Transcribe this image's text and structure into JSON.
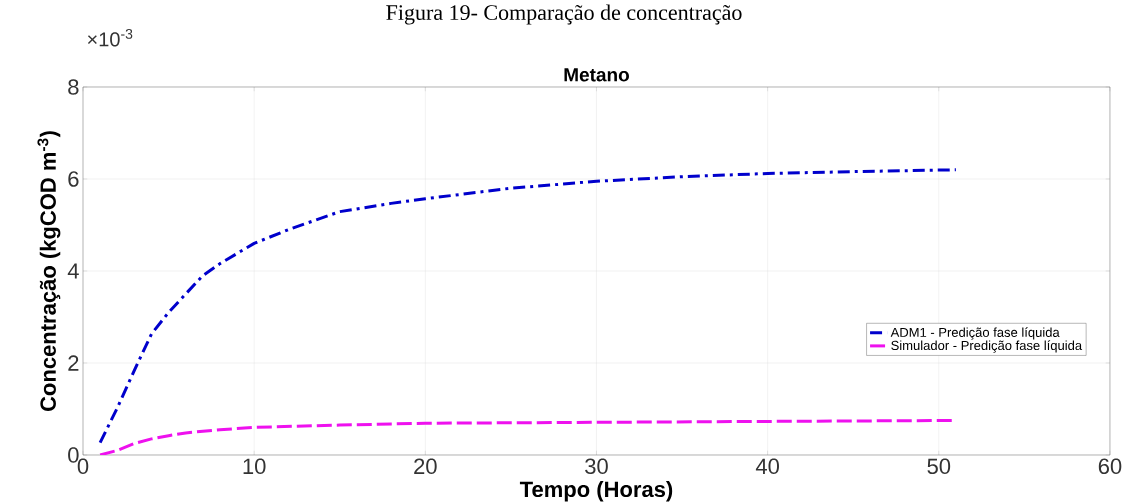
{
  "chart_data": {
    "type": "line",
    "title": "Figura 19- Comparação de concentração",
    "subtitle": "Metano",
    "xlabel": "Tempo (Horas)",
    "ylabel": "Concentração (kgCOD m$^{-3}$)",
    "annotations": [
      "×10$^{-3}$"
    ],
    "xlim": [
      0,
      60
    ],
    "xticks": [
      0,
      10,
      20,
      30,
      40,
      50,
      60
    ],
    "ylim": [
      0,
      8
    ],
    "yticks": [
      0,
      2,
      4,
      6,
      8
    ],
    "grid": true,
    "legend": "bottom right",
    "series": [
      {
        "name": "ADM1 - Predição fase líquida",
        "color": "#0000cc",
        "line_style": "dashdot",
        "x": [
          1,
          2,
          3,
          4,
          5,
          6,
          7,
          8,
          10,
          12,
          15,
          18,
          20,
          25,
          30,
          35,
          40,
          45,
          51
        ],
        "values": [
          0.27,
          1.02,
          1.84,
          2.63,
          3.1,
          3.5,
          3.9,
          4.16,
          4.6,
          4.9,
          5.29,
          5.47,
          5.57,
          5.8,
          5.95,
          6.05,
          6.12,
          6.16,
          6.2
        ]
      },
      {
        "name": "Simulador - Predição fase líquida",
        "color": "#ee11ee",
        "line_style": "dashed",
        "x": [
          1,
          2,
          3,
          4,
          5,
          6,
          8,
          10,
          15,
          20,
          30,
          40,
          51
        ],
        "values": [
          0.0,
          0.1,
          0.25,
          0.35,
          0.42,
          0.48,
          0.55,
          0.6,
          0.65,
          0.69,
          0.71,
          0.73,
          0.75
        ]
      }
    ]
  }
}
